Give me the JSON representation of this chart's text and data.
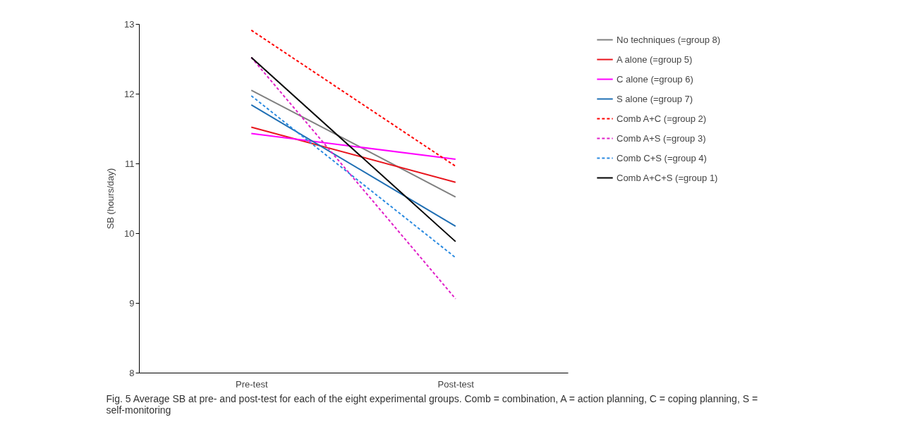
{
  "chart_data": {
    "type": "line",
    "ylabel": "SB (hours/day)",
    "categories": [
      "Pre-test",
      "Post-test"
    ],
    "ylim": [
      8,
      13
    ],
    "yticks": [
      8,
      9,
      10,
      11,
      12,
      13
    ],
    "grid": false,
    "legend": "right",
    "marker": "none",
    "series": [
      {
        "name": "No techniques (=group 8)",
        "color": "#808080",
        "line_style": "solid",
        "values": [
          12.05,
          10.52
        ]
      },
      {
        "name": "A alone (=group 5)",
        "color": "#e8141c",
        "line_style": "solid",
        "values": [
          11.52,
          10.73
        ]
      },
      {
        "name": "C alone (=group 6)",
        "color": "#ff00ff",
        "line_style": "solid",
        "values": [
          11.43,
          11.06
        ]
      },
      {
        "name": "S alone (=group 7)",
        "color": "#1f6fb4",
        "line_style": "solid",
        "values": [
          11.84,
          10.1
        ]
      },
      {
        "name": "Comb A+C (=group 2)",
        "color": "#ff0000",
        "line_style": "dashed",
        "values": [
          12.91,
          10.96
        ]
      },
      {
        "name": "Comb A+S (=group 3)",
        "color": "#e020c8",
        "line_style": "dashed",
        "values": [
          12.52,
          9.06
        ]
      },
      {
        "name": "Comb C+S (=group 4)",
        "color": "#2a8ae0",
        "line_style": "dashed",
        "values": [
          11.97,
          9.65
        ]
      },
      {
        "name": "Comb A+C+S (=group 1)",
        "color": "#000000",
        "line_style": "solid",
        "values": [
          12.52,
          9.88
        ]
      }
    ],
    "annotations": [
      "Fig. 5 Average SB at pre- and post-test for each of the eight experimental groups. Comb = combination, A = action planning, C = coping planning, S = self-monitoring"
    ]
  }
}
